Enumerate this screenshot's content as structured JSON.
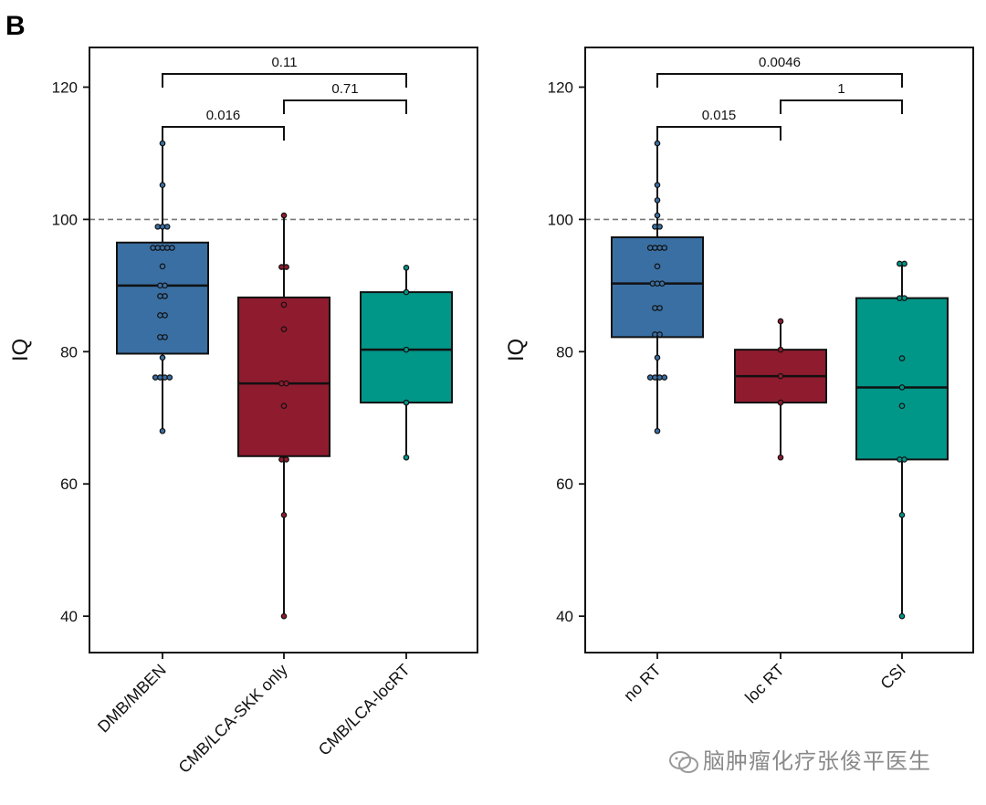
{
  "figure": {
    "panel_label": "B"
  },
  "watermark": {
    "text": "脑肿瘤化疗张俊平医生"
  },
  "chart_data": [
    {
      "type": "box",
      "ylabel": "IQ",
      "ylim": [
        34.5,
        126
      ],
      "yticks": [
        40,
        60,
        80,
        100,
        120
      ],
      "reference_line": 100,
      "grid": false,
      "categories": [
        "DMB/MBEN",
        "CMB/LCA-SKK only",
        "CMB/LCA-locRT"
      ],
      "colors": [
        "#3a6fa3",
        "#8f1b2e",
        "#009688"
      ],
      "boxes": [
        {
          "name": "DMB/MBEN",
          "whisker_low": 68,
          "q1": 79.7,
          "median": 90,
          "q3": 96.5,
          "whisker_high": 111.5,
          "points": [
            111.5,
            105.2,
            98.9,
            98.9,
            98.9,
            95.7,
            95.7,
            95.7,
            95.7,
            95.7,
            92.9,
            90,
            90,
            88.4,
            88.4,
            85.5,
            85.5,
            82.2,
            82.2,
            79.1,
            76.1,
            76.1,
            76.1,
            76.1,
            68
          ]
        },
        {
          "name": "CMB/LCA-SKK only",
          "whisker_low": 40,
          "q1": 64.2,
          "median": 75.2,
          "q3": 88.2,
          "whisker_high": 100.6,
          "points": [
            100.6,
            92.8,
            92.8,
            87.1,
            83.4,
            75.2,
            75.2,
            71.8,
            63.7,
            63.7,
            55.3,
            40
          ]
        },
        {
          "name": "CMB/LCA-locRT",
          "whisker_low": 64,
          "q1": 72.3,
          "median": 80.3,
          "q3": 89,
          "whisker_high": 92.7,
          "points": [
            92.7,
            89,
            80.3,
            72.3,
            64
          ]
        }
      ],
      "comparisons": [
        {
          "from": 0,
          "to": 1,
          "p": "0.016",
          "y": 114
        },
        {
          "from": 1,
          "to": 2,
          "p": "0.71",
          "y": 118
        },
        {
          "from": 0,
          "to": 2,
          "p": "0.11",
          "y": 122
        }
      ]
    },
    {
      "type": "box",
      "ylabel": "IQ",
      "ylim": [
        34.5,
        126
      ],
      "yticks": [
        40,
        60,
        80,
        100,
        120
      ],
      "reference_line": 100,
      "grid": false,
      "categories": [
        "no RT",
        "loc RT",
        "CSI"
      ],
      "colors": [
        "#3a6fa3",
        "#8f1b2e",
        "#009688"
      ],
      "boxes": [
        {
          "name": "no RT",
          "whisker_low": 68,
          "q1": 82.2,
          "median": 90.3,
          "q3": 97.3,
          "whisker_high": 111.5,
          "points": [
            111.5,
            105.2,
            102.9,
            100.6,
            98.9,
            98.9,
            95.7,
            95.7,
            95.7,
            95.7,
            92.9,
            90.3,
            90.3,
            90.3,
            86.6,
            86.6,
            82.6,
            82.6,
            79.1,
            76.1,
            76.1,
            76.1,
            76.1,
            68
          ]
        },
        {
          "name": "loc RT",
          "whisker_low": 64,
          "q1": 72.3,
          "median": 76.3,
          "q3": 80.3,
          "whisker_high": 84.6,
          "points": [
            84.6,
            80.3,
            76.3,
            72.3,
            64
          ]
        },
        {
          "name": "CSI",
          "whisker_low": 40,
          "q1": 63.7,
          "median": 74.6,
          "q3": 88.1,
          "whisker_high": 93.3,
          "points": [
            93.3,
            93.3,
            88.1,
            88.1,
            79,
            74.6,
            71.8,
            63.7,
            63.7,
            55.3,
            40
          ]
        }
      ],
      "comparisons": [
        {
          "from": 0,
          "to": 1,
          "p": "0.015",
          "y": 114
        },
        {
          "from": 1,
          "to": 2,
          "p": "1",
          "y": 118
        },
        {
          "from": 0,
          "to": 2,
          "p": "0.0046",
          "y": 122
        }
      ]
    }
  ]
}
